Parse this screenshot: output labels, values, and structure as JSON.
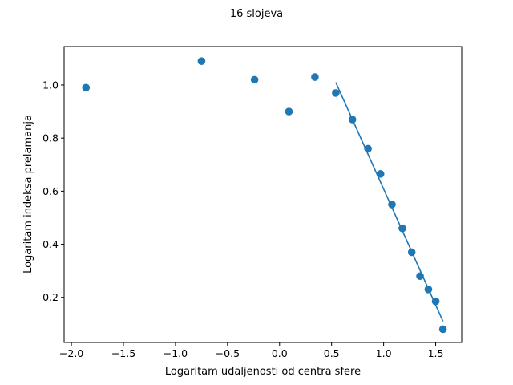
{
  "chart_data": {
    "type": "scatter",
    "title": "16 slojeva",
    "xlabel": "Logaritam udaljenosti od centra sfere",
    "ylabel": "Logaritam indeksa prelamanja",
    "xlim": [
      -2.07,
      1.75
    ],
    "ylim": [
      0.03,
      1.145
    ],
    "xticks": [
      -2.0,
      -1.5,
      -1.0,
      -0.5,
      0.0,
      0.5,
      1.0,
      1.5
    ],
    "xtick_labels": [
      "−2.0",
      "−1.5",
      "−1.0",
      "−0.5",
      "0.0",
      "0.5",
      "1.0",
      "1.5"
    ],
    "yticks": [
      0.2,
      0.4,
      0.6,
      0.8,
      1.0
    ],
    "ytick_labels": [
      "0.2",
      "0.4",
      "0.6",
      "0.8",
      "1.0"
    ],
    "grid": false,
    "color": "#1f77b4",
    "series": [
      {
        "kind": "scatter",
        "x": [
          -1.86,
          -0.75,
          -0.24,
          0.09,
          0.34,
          0.54,
          0.7,
          0.85,
          0.97,
          1.08,
          1.18,
          1.27,
          1.35,
          1.43,
          1.5,
          1.57
        ],
        "y": [
          0.99,
          1.09,
          1.02,
          0.9,
          1.03,
          0.97,
          0.87,
          0.76,
          0.665,
          0.55,
          0.46,
          0.37,
          0.28,
          0.23,
          0.185,
          0.08
        ]
      },
      {
        "kind": "line",
        "x": [
          0.54,
          1.57
        ],
        "y": [
          1.01,
          0.11
        ]
      }
    ]
  }
}
